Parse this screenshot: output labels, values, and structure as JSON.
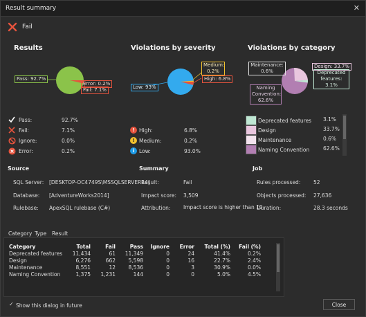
{
  "window": {
    "title": "Result summary",
    "close_glyph": "✕"
  },
  "status": {
    "label": "Fail",
    "icon": "fail-x-icon",
    "color": "#e5533d"
  },
  "results": {
    "heading": "Results",
    "pie_labels": {
      "pass": "Pass: 92.7%",
      "error": "Error: 0.2%",
      "fail": "Fail: 7.1%"
    },
    "items": [
      {
        "label": "Pass:",
        "value": "92.7%",
        "icon": "check-icon",
        "color": "#ffffff"
      },
      {
        "label": "Fail:",
        "value": "7.1%",
        "icon": "x-icon",
        "color": "#e5533d"
      },
      {
        "label": "Ignore:",
        "value": "0.0%",
        "icon": "ban-icon",
        "color": "#e5533d"
      },
      {
        "label": "Error:",
        "value": "0.2%",
        "icon": "error-x-icon",
        "color": "#e5533d"
      }
    ],
    "colors": {
      "pass": "#8bc34a",
      "fail": "#e5533d"
    }
  },
  "severity": {
    "heading": "Violations by severity",
    "pie_labels": {
      "medium_name": "Medium:",
      "medium_value": "0.2%",
      "high": "High: 6.8%",
      "low": "Low: 93%"
    },
    "items": [
      {
        "label": "High:",
        "value": "6.8%",
        "icon": "high-exclamation-icon",
        "color": "#e5533d"
      },
      {
        "label": "Medium:",
        "value": "0.2%",
        "icon": "medium-exclamation-icon",
        "color": "#f2c12e"
      },
      {
        "label": "Low:",
        "value": "93.0%",
        "icon": "low-info-icon",
        "color": "#1e9be6"
      }
    ],
    "colors": {
      "low": "#33aaee",
      "high": "#e5533d",
      "medium": "#f2c12e"
    }
  },
  "category": {
    "heading": "Violations by category",
    "pie_labels": {
      "maint_name": "Maintenance:",
      "maint_value": "0.6%",
      "design": "Design: 33.7%",
      "dep_line1": "Deprecated",
      "dep_line2": "features:",
      "dep_value": "3.1%",
      "naming_line1": "Naming",
      "naming_line2": "Convention:",
      "naming_value": "62.6%"
    },
    "items": [
      {
        "label": "Deprecated features",
        "value": "3.1%",
        "color": "#bfe7d3"
      },
      {
        "label": "Design",
        "value": "33.7%",
        "color": "#e9c6de"
      },
      {
        "label": "Maintenance",
        "value": "0.6%",
        "color": "#f3e3ee"
      },
      {
        "label": "Naming Convention",
        "value": "62.6%",
        "color": "#b27fb2"
      }
    ]
  },
  "source": {
    "heading": "Source",
    "rows": [
      {
        "label": "SQL Server:",
        "value": "[DESKTOP-OC4749S\\MSSQLSERVER14]"
      },
      {
        "label": "Database:",
        "value": "[AdventureWorks2014]"
      },
      {
        "label": "Rulebase:",
        "value": "ApexSQL rulebase (C#)"
      }
    ]
  },
  "summary": {
    "heading": "Summary",
    "rows": [
      {
        "label": "Result:",
        "value": "Fail"
      },
      {
        "label": "Impact score:",
        "value": "3,509"
      },
      {
        "label": "Attribution:",
        "value": "Impact score is higher than 10"
      }
    ]
  },
  "job": {
    "heading": "Job",
    "rows": [
      {
        "label": "Rules processed:",
        "value": "52"
      },
      {
        "label": "Objects processed:",
        "value": "27,636"
      },
      {
        "label": "Duration:",
        "value": "28.3 seconds"
      }
    ]
  },
  "tabs": [
    "Category",
    "Type",
    "Result"
  ],
  "table": {
    "headers": [
      "Category",
      "Total",
      "Fail",
      "Pass",
      "Ignore",
      "Error",
      "Total (%)",
      "Fail (%)"
    ],
    "rows": [
      [
        "Deprecated features",
        "11,434",
        "61",
        "11,349",
        "0",
        "24",
        "41.4%",
        "0.2%"
      ],
      [
        "Design",
        "6,276",
        "662",
        "5,598",
        "0",
        "16",
        "22.7%",
        "2.4%"
      ],
      [
        "Maintenance",
        "8,551",
        "12",
        "8,536",
        "0",
        "3",
        "30.9%",
        "0.0%"
      ],
      [
        "Naming Convention",
        "1,375",
        "1,231",
        "144",
        "0",
        "0",
        "5.0%",
        "4.5%"
      ]
    ]
  },
  "footer": {
    "checkbox_label": "Show this dialog in future",
    "checkbox_glyph": "✓",
    "close_label": "Close"
  }
}
